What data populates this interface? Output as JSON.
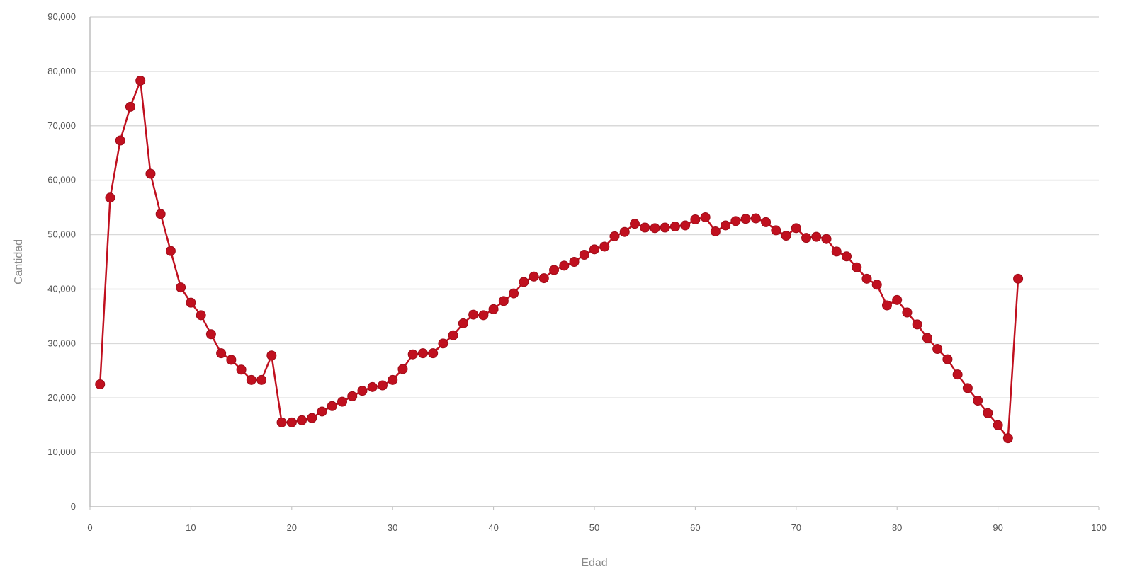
{
  "chart_data": {
    "type": "line",
    "xlabel": "Edad",
    "ylabel": "Cantidad",
    "xlim": [
      0,
      100
    ],
    "ylim": [
      0,
      90000
    ],
    "x_ticks": [
      "0",
      "10",
      "20",
      "30",
      "40",
      "50",
      "60",
      "70",
      "80",
      "90",
      "100"
    ],
    "y_ticks": [
      "0",
      "10,000",
      "20,000",
      "30,000",
      "40,000",
      "50,000",
      "60,000",
      "70,000",
      "80,000",
      "90,000"
    ],
    "grid": true,
    "legend": "none",
    "series": [
      {
        "color": "#c0101f",
        "marker": "circle",
        "x": [
          1,
          2,
          3,
          4,
          5,
          6,
          7,
          8,
          9,
          10,
          11,
          12,
          13,
          14,
          15,
          16,
          17,
          18,
          19,
          20,
          21,
          22,
          23,
          24,
          25,
          26,
          27,
          28,
          29,
          30,
          31,
          32,
          33,
          34,
          35,
          36,
          37,
          38,
          39,
          40,
          41,
          42,
          43,
          44,
          45,
          46,
          47,
          48,
          49,
          50,
          51,
          52,
          53,
          54,
          55,
          56,
          57,
          58,
          59,
          60,
          61,
          62,
          63,
          64,
          65,
          66,
          67,
          68,
          69,
          70,
          71,
          72,
          73,
          74,
          75,
          76,
          77,
          78,
          79,
          80,
          81,
          82,
          83,
          84,
          85,
          86,
          87,
          88,
          89,
          90,
          91,
          92
        ],
        "y": [
          22500,
          56800,
          67300,
          73500,
          78300,
          61200,
          53800,
          47000,
          40300,
          37500,
          35200,
          31700,
          28200,
          27000,
          25200,
          23300,
          23300,
          27800,
          15500,
          15500,
          15900,
          16300,
          17500,
          18500,
          19300,
          20300,
          21300,
          22000,
          22300,
          23300,
          25300,
          28000,
          28200,
          28200,
          30000,
          31500,
          33700,
          35300,
          35200,
          36300,
          37800,
          39200,
          41300,
          42300,
          42000,
          43500,
          44300,
          45000,
          46300,
          47300,
          47800,
          49700,
          50500,
          52000,
          51300,
          51200,
          51300,
          51500,
          51700,
          52800,
          53200,
          50600,
          51700,
          52500,
          52900,
          53000,
          52300,
          50800,
          49800,
          51200,
          49400,
          49600,
          49200,
          46900,
          46000,
          44000,
          41900,
          40800,
          37000,
          38000,
          35700,
          33500,
          31000,
          29000,
          27100,
          24300,
          21800,
          19500,
          17200,
          15000,
          12600,
          41900
        ]
      }
    ]
  }
}
